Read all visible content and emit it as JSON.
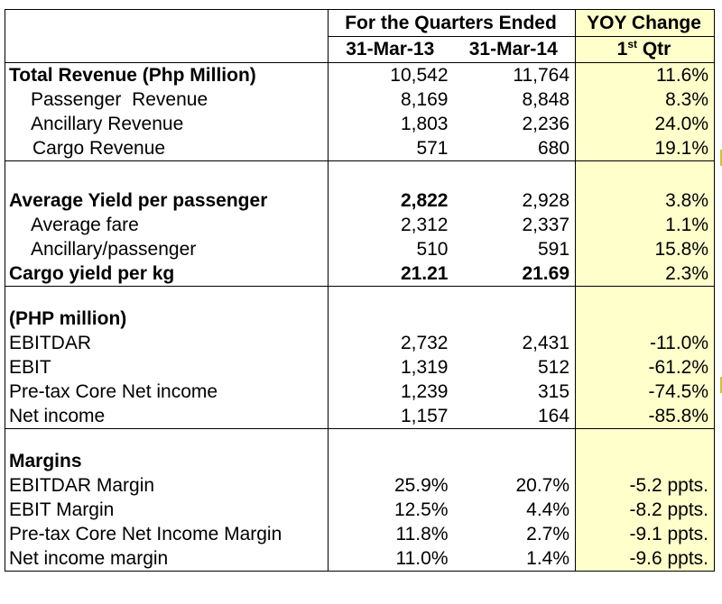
{
  "header": {
    "quarters_label": "For the Quarters Ended",
    "yoy_label": "YOY Change",
    "col1": "31-Mar-13",
    "col2": "31-Mar-14",
    "col3_main": "1",
    "col3_sup": "st",
    "col3_tail": " Qtr"
  },
  "revenue": {
    "total": {
      "label": "Total Revenue (Php Million)",
      "q1": "10,542",
      "q2": "11,764",
      "yoy": "11.6%"
    },
    "passenger": {
      "label": "Passenger  Revenue",
      "q1": "8,169",
      "q2": "8,848",
      "yoy": "8.3%"
    },
    "ancillary": {
      "label": "Ancillary Revenue",
      "q1": "1,803",
      "q2": "2,236",
      "yoy": "24.0%"
    },
    "cargo": {
      "label": "Cargo Revenue",
      "q1": "571",
      "q2": "680",
      "yoy": "19.1%"
    }
  },
  "yield": {
    "avg_yield": {
      "label": "Average Yield per passenger",
      "q1": "2,822",
      "q2": "2,928",
      "yoy": "3.8%"
    },
    "avg_fare": {
      "label": "Average fare",
      "q1": "2,312",
      "q2": "2,337",
      "yoy": "1.1%"
    },
    "ancillary_pp": {
      "label": "Ancillary/passenger",
      "q1": "510",
      "q2": "591",
      "yoy": "15.8%"
    },
    "cargo_yield": {
      "label": "Cargo yield per kg",
      "q1": "21.21",
      "q2": "21.69",
      "yoy": "2.3%"
    }
  },
  "income": {
    "section_label": "(PHP million)",
    "ebitdar": {
      "label": "EBITDAR",
      "q1": "2,732",
      "q2": "2,431",
      "yoy": "-11.0%"
    },
    "ebit": {
      "label": "EBIT",
      "q1": "1,319",
      "q2": "512",
      "yoy": "-61.2%"
    },
    "pretax": {
      "label": "Pre-tax Core Net income",
      "q1": "1,239",
      "q2": "315",
      "yoy": "-74.5%"
    },
    "net": {
      "label": "Net income",
      "q1": "1,157",
      "q2": "164",
      "yoy": "-85.8%"
    }
  },
  "margins": {
    "section_label": "Margins",
    "ebitdar": {
      "label": "EBITDAR Margin",
      "q1": "25.9%",
      "q2": "20.7%",
      "yoy": "-5.2 ppts."
    },
    "ebit": {
      "label": "EBIT Margin",
      "q1": "12.5%",
      "q2": "4.4%",
      "yoy": "-8.2 ppts."
    },
    "pretax": {
      "label": "Pre-tax Core Net Income Margin",
      "q1": "11.8%",
      "q2": "2.7%",
      "yoy": "-9.1 ppts."
    },
    "net": {
      "label": "Net income margin",
      "q1": "11.0%",
      "q2": "1.4%",
      "yoy": "-9.6 ppts."
    }
  },
  "colors": {
    "yoy_fill": "#ffffcc",
    "border": "#000000"
  }
}
